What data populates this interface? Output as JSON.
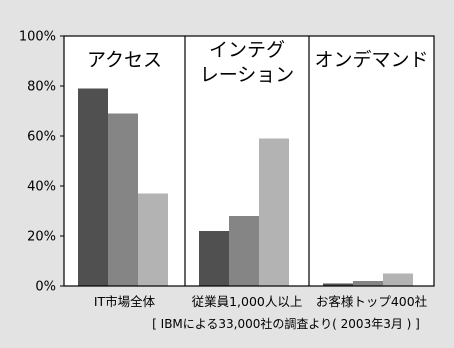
{
  "colors": {
    "background": "#e3e3e3",
    "panel": "#ffffff",
    "series_dark": "#505050",
    "series_mid": "#858585",
    "series_light": "#b3b3b3",
    "axis": "#000000"
  },
  "chart_data": {
    "type": "bar",
    "categories": [
      "IT市場全体",
      "従業員1,000人以上",
      "お客様トップ400社"
    ],
    "groups": [
      {
        "title_lines": [
          "アクセス"
        ]
      },
      {
        "title_lines": [
          "インテグ",
          "レーション"
        ]
      },
      {
        "title_lines": [
          "オンデマンド"
        ]
      }
    ],
    "series": [
      {
        "values": [
          79,
          22,
          1
        ]
      },
      {
        "values": [
          69,
          28,
          2
        ]
      },
      {
        "values": [
          37,
          59,
          5
        ]
      }
    ],
    "ylim": [
      0,
      100
    ],
    "yticks": [
      0,
      20,
      40,
      60,
      80,
      100
    ],
    "ytick_labels": [
      "0%",
      "20%",
      "40%",
      "60%",
      "80%",
      "100%"
    ],
    "source_note": "[ IBMによる33,000社の調査より( 2003年3月 ) ]",
    "grid": false,
    "legend": "none"
  }
}
